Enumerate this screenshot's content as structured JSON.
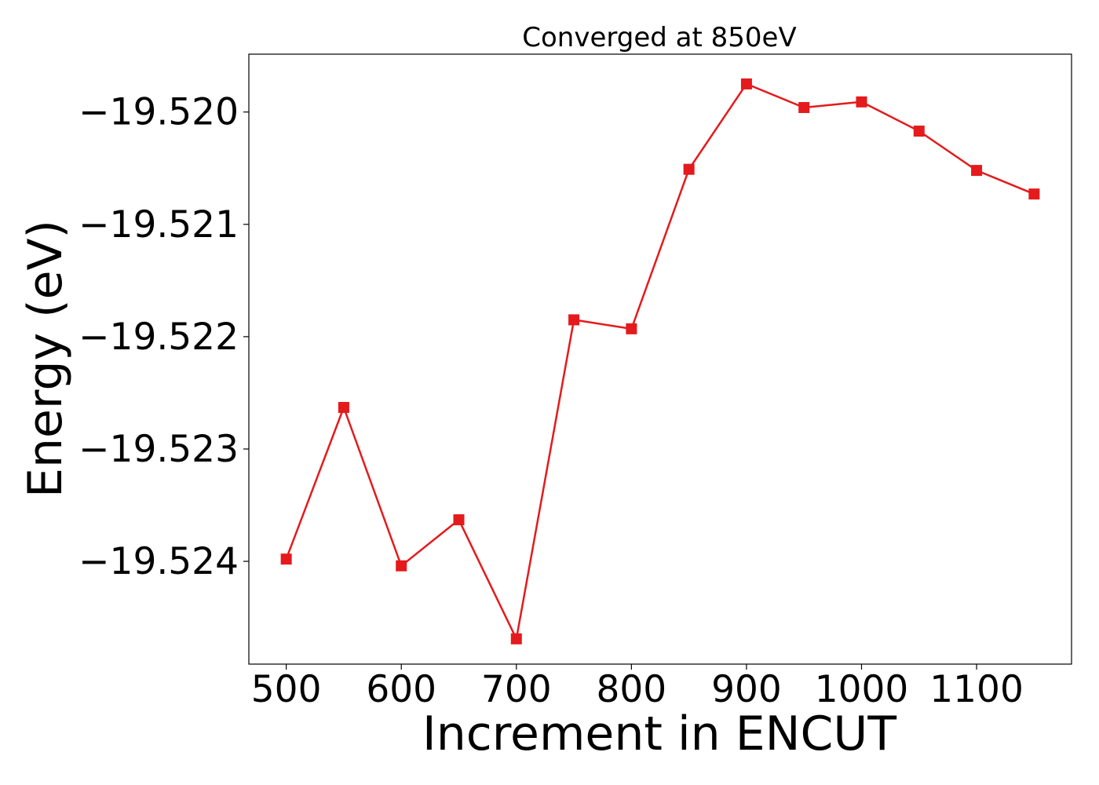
{
  "chart_data": {
    "type": "line",
    "title": "Converged at 850eV",
    "xlabel": "Increment in ENCUT",
    "ylabel": "Energy (eV)",
    "x": [
      500,
      550,
      600,
      650,
      700,
      750,
      800,
      850,
      900,
      950,
      1000,
      1050,
      1100,
      1150
    ],
    "series": [
      {
        "values": [
          -19.52398,
          -19.52263,
          -19.52404,
          -19.52363,
          -19.52469,
          -19.52185,
          -19.52193,
          -19.52051,
          -19.51975,
          -19.51996,
          -19.51991,
          -19.52017,
          -19.52052,
          -19.52073
        ],
        "color": "#e41a1c",
        "marker": "square"
      }
    ],
    "xlim": [
      467.5,
      1182.5
    ],
    "ylim": [
      -19.524915,
      -19.519485
    ],
    "xticks": [
      500,
      600,
      700,
      800,
      900,
      1000,
      1100
    ],
    "xtick_labels": [
      "500",
      "600",
      "700",
      "800",
      "900",
      "1000",
      "1100"
    ],
    "yticks": [
      -19.52,
      -19.521,
      -19.522,
      -19.523,
      -19.524
    ],
    "ytick_labels": [
      "−19.520",
      "−19.521",
      "−19.522",
      "−19.523",
      "−19.524"
    ],
    "grid": false,
    "legend": "none"
  }
}
